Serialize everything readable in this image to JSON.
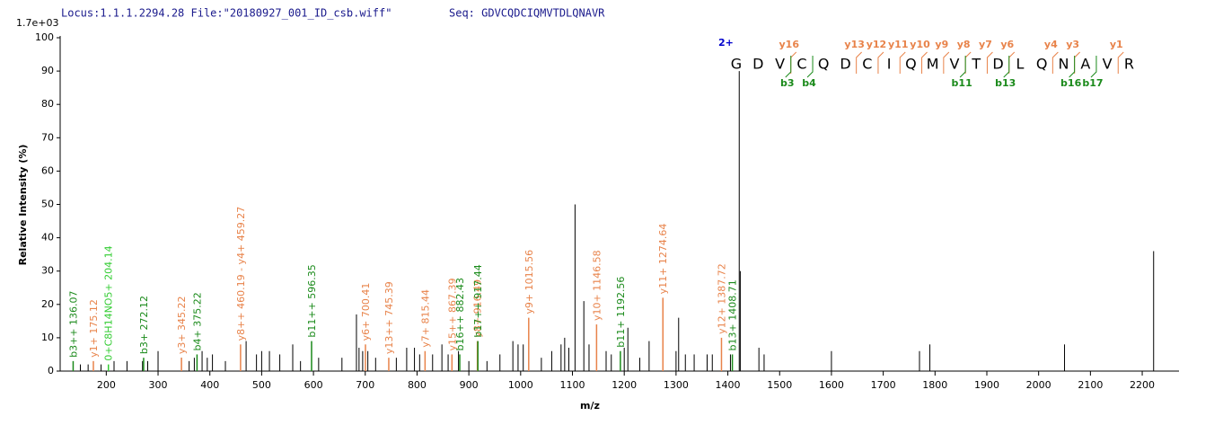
{
  "chart_data": {
    "type": "spectrum",
    "title": "Locus:1.1.1.2294.28 File:\"20180927_001_ID_csb.wiff\"",
    "subtitle": "Seq: GDVCQDCIQMVTDLQNAVR",
    "scale_label": "1.7e+03",
    "xlabel": "m/z",
    "ylabel": "Relative  Intensity (%)",
    "xlim": [
      111,
      2271
    ],
    "ylim": [
      0,
      100
    ],
    "xticks": [
      200,
      300,
      400,
      500,
      600,
      700,
      800,
      900,
      1000,
      1100,
      1200,
      1300,
      1400,
      1500,
      1600,
      1700,
      1800,
      1900,
      2000,
      2100,
      2200
    ],
    "yticks": [
      0,
      10,
      20,
      30,
      40,
      50,
      60,
      70,
      80,
      90,
      100
    ],
    "peak_color": "#000000",
    "ion_colors": {
      "y": "#e8834a",
      "b": "#1a8a1a",
      "other": "#33cc33"
    },
    "peaks": {
      "x": [
        150,
        165,
        190,
        215,
        240,
        270,
        280,
        300,
        345,
        360,
        370,
        385,
        395,
        405,
        430,
        470,
        490,
        500,
        515,
        535,
        560,
        575,
        610,
        655,
        683,
        688,
        695,
        705,
        720,
        760,
        780,
        795,
        805,
        830,
        848,
        860,
        880,
        900,
        935,
        960,
        985,
        995,
        1005,
        1040,
        1060,
        1078,
        1085,
        1093,
        1105,
        1122,
        1132,
        1165,
        1175,
        1200,
        1207,
        1230,
        1248,
        1300,
        1305,
        1318,
        1335,
        1360,
        1370,
        1405,
        1422,
        1424,
        1460,
        1470,
        1600,
        1770,
        1790,
        2050,
        2222
      ],
      "values": [
        2,
        2,
        2,
        3,
        3,
        3,
        3,
        6,
        4,
        3,
        4,
        6,
        4,
        5,
        3,
        9,
        5,
        6,
        6,
        5,
        8,
        3,
        4,
        4,
        17,
        7,
        6,
        6,
        4,
        4,
        7,
        7,
        5,
        5,
        8,
        5,
        6,
        3,
        3,
        5,
        9,
        8,
        8,
        4,
        6,
        8,
        10,
        7,
        50,
        21,
        8,
        6,
        5,
        7,
        13,
        4,
        9,
        6,
        16,
        5,
        5,
        5,
        5,
        5,
        90,
        30,
        7,
        5,
        6,
        6,
        8,
        8,
        36
      ]
    },
    "annotated_peaks": [
      {
        "label": "b3++ 136.07",
        "mz": 136.07,
        "intensity": 3,
        "ion": "b"
      },
      {
        "label": "y1+ 175.12",
        "mz": 175.12,
        "intensity": 3,
        "ion": "y"
      },
      {
        "label": "0+C8H14NO5+ 204.14",
        "mz": 204.14,
        "intensity": 2,
        "ion": "other"
      },
      {
        "label": "b3+ 272.12",
        "mz": 272.12,
        "intensity": 4,
        "ion": "b"
      },
      {
        "label": "y3+ 345.22",
        "mz": 345.22,
        "intensity": 4,
        "ion": "y"
      },
      {
        "label": "b4+ 375.22",
        "mz": 375.22,
        "intensity": 5,
        "ion": "b"
      },
      {
        "label": "y8++ 460.19 - y4+ 459.27",
        "mz": 459.27,
        "intensity": 8,
        "ion": "y"
      },
      {
        "label": "b11++ 596.35",
        "mz": 596.35,
        "intensity": 9,
        "ion": "b"
      },
      {
        "label": "y6+ 700.41",
        "mz": 700.41,
        "intensity": 8,
        "ion": "y"
      },
      {
        "label": "y13++ 745.39",
        "mz": 745.39,
        "intensity": 4,
        "ion": "y"
      },
      {
        "label": "y7+ 815.44",
        "mz": 815.44,
        "intensity": 6,
        "ion": "y"
      },
      {
        "label": "y15++ 867.39",
        "mz": 867.39,
        "intensity": 5,
        "ion": "y"
      },
      {
        "label": "b16++ 882.43",
        "mz": 882.43,
        "intensity": 5,
        "ion": "b"
      },
      {
        "label": "y8+ 916.49",
        "mz": 916.49,
        "intensity": 9,
        "ion": "y"
      },
      {
        "label": "b17++ 917.44",
        "mz": 917.44,
        "intensity": 9,
        "ion": "b"
      },
      {
        "label": "y9+ 1015.56",
        "mz": 1015.56,
        "intensity": 16,
        "ion": "y"
      },
      {
        "label": "y10+ 1146.58",
        "mz": 1146.58,
        "intensity": 14,
        "ion": "y"
      },
      {
        "label": "b11+ 1192.56",
        "mz": 1192.56,
        "intensity": 6,
        "ion": "b"
      },
      {
        "label": "y11+ 1274.64",
        "mz": 1274.64,
        "intensity": 22,
        "ion": "y"
      },
      {
        "label": "y12+ 1387.72",
        "mz": 1387.72,
        "intensity": 10,
        "ion": "y"
      },
      {
        "label": "b13+ 1408.71",
        "mz": 1408.71,
        "intensity": 5,
        "ion": "b"
      }
    ],
    "sequence_annotation": {
      "charge": "2+",
      "residues": [
        "G",
        "D",
        "V",
        "C",
        "Q",
        "D",
        "C",
        "I",
        "Q",
        "M",
        "V",
        "T",
        "D",
        "L",
        "Q",
        "N",
        "A",
        "V",
        "R"
      ],
      "y_marks": [
        null,
        null,
        null,
        "y16",
        null,
        null,
        "y13",
        "y12",
        "y11",
        "y10",
        "y9",
        "y8",
        "y7",
        "y6",
        null,
        "y4",
        "y3",
        null,
        "y1"
      ],
      "b_marks": [
        null,
        null,
        null,
        "b3",
        "b4",
        null,
        null,
        null,
        null,
        null,
        null,
        "b11",
        null,
        "b13",
        null,
        null,
        "b16",
        "b17",
        null
      ]
    }
  }
}
